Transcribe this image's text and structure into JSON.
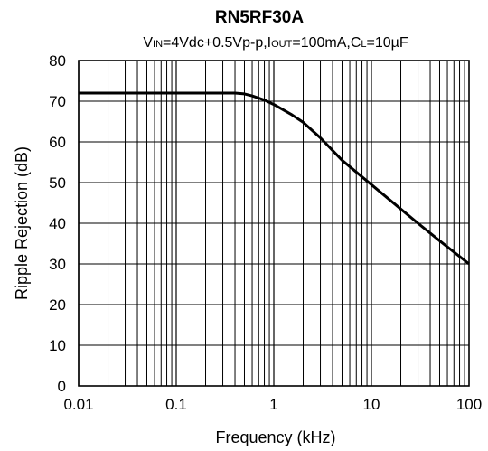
{
  "chart_data": {
    "type": "line",
    "title": "RN5RF30A",
    "subtitle": {
      "parts": [
        {
          "text": "V",
          "small": false
        },
        {
          "text": "IN",
          "small": true
        },
        {
          "text": "=4Vdc+0.5Vp-p,I",
          "small": false
        },
        {
          "text": "OUT",
          "small": true
        },
        {
          "text": "=100mA,C",
          "small": false
        },
        {
          "text": "L",
          "small": true
        },
        {
          "text": "=10µF",
          "small": false
        }
      ]
    },
    "xlabel": "Frequency (kHz)",
    "ylabel": "Ripple Rejection (dB)",
    "x_scale": "log",
    "xlim": [
      0.01,
      100
    ],
    "ylim": [
      0,
      80
    ],
    "x_ticks": [
      {
        "value": 0.01,
        "label": "0.01"
      },
      {
        "value": 0.1,
        "label": "0.1"
      },
      {
        "value": 1,
        "label": "1"
      },
      {
        "value": 10,
        "label": "10"
      },
      {
        "value": 100,
        "label": "100"
      }
    ],
    "y_ticks": [
      {
        "value": 0,
        "label": "0"
      },
      {
        "value": 10,
        "label": "10"
      },
      {
        "value": 20,
        "label": "20"
      },
      {
        "value": 30,
        "label": "30"
      },
      {
        "value": 40,
        "label": "40"
      },
      {
        "value": 50,
        "label": "50"
      },
      {
        "value": 60,
        "label": "60"
      },
      {
        "value": 70,
        "label": "70"
      },
      {
        "value": 80,
        "label": "80"
      }
    ],
    "grid": true,
    "series": [
      {
        "color": "#000000",
        "x": [
          0.01,
          0.05,
          0.1,
          0.2,
          0.4,
          0.5,
          0.6,
          0.8,
          1,
          1.5,
          2,
          3,
          5,
          10,
          20,
          30,
          50,
          100
        ],
        "y": [
          72,
          72,
          72,
          72,
          72,
          71.8,
          71.3,
          70.3,
          69.2,
          66.8,
          64.8,
          61,
          55.5,
          49.5,
          43.5,
          40,
          35.7,
          30
        ]
      }
    ]
  }
}
